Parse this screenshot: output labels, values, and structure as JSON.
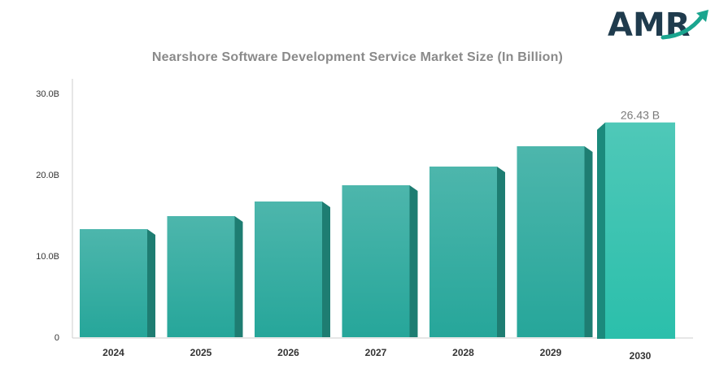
{
  "logo": {
    "text": "AMR",
    "text_color": "#1f3b4d",
    "arrow_color": "#1aa58f",
    "icon": "growth-arrow-icon"
  },
  "chart_data": {
    "type": "bar",
    "title": "Nearshore Software Development Service Market Size (In Billion)",
    "xlabel": "",
    "ylabel": "",
    "categories": [
      "2024",
      "2025",
      "2026",
      "2027",
      "2028",
      "2029",
      "2030"
    ],
    "values": [
      13.3,
      14.9,
      16.7,
      18.7,
      21.0,
      23.5,
      26.43
    ],
    "ylim": [
      0,
      30
    ],
    "yticks": [
      0,
      10,
      20,
      30
    ],
    "ytick_labels": [
      "0",
      "10.0B",
      "20.0B",
      "30.0B"
    ],
    "data_labels": [
      {
        "category": "2030",
        "text": "26.43 B"
      }
    ],
    "highlight_category": "2030",
    "grid": false,
    "legend": "none",
    "colors": {
      "bar_top": "#4db6ac",
      "bar_bottom": "#26a69a",
      "bar_side": "#1e7d72",
      "highlight_top": "#4fc8b8",
      "highlight_bottom": "#2bbfab",
      "highlight_side": "#1b8a7c",
      "axis": "#cccccc",
      "title": "#8a8a8a"
    }
  }
}
